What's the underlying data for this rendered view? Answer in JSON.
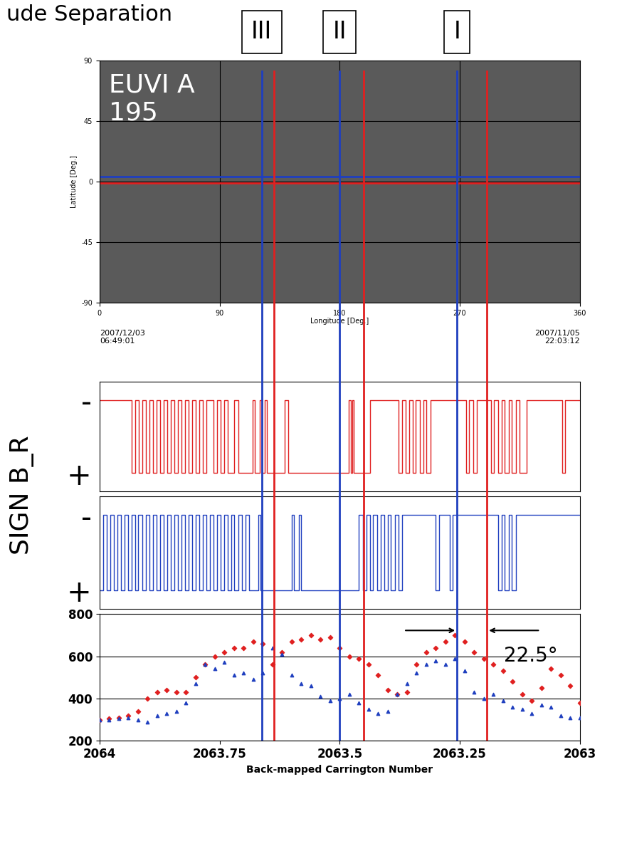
{
  "header": "ude Separation",
  "chart_data": [
    {
      "type": "image",
      "title": "EUVI A\n195",
      "xlabel": "Longitude [Deg.]",
      "ylabel": "Latitude [Deg.]",
      "xlim": [
        0,
        360
      ],
      "ylim": [
        -90,
        90
      ],
      "xticks": [
        0,
        90,
        180,
        270,
        360
      ],
      "yticks": [
        -90,
        -45,
        0,
        45,
        90
      ],
      "grid": true,
      "annotations": [
        "2007/12/03\n06:49:01",
        "2007/11/05\n22:03:12"
      ],
      "reference_lines": [
        {
          "color": "#1f3fbf",
          "y": 4
        },
        {
          "color": "#e02020",
          "y": -1
        }
      ],
      "markers": [
        {
          "label": "III",
          "lines": [
            {
              "color": "#1f3fbf",
              "x": 121.6
            },
            {
              "color": "#e02020",
              "x": 131.0
            }
          ]
        },
        {
          "label": "II",
          "lines": [
            {
              "color": "#1f3fbf",
              "x": 180.0
            },
            {
              "color": "#e02020",
              "x": 198.0
            }
          ]
        },
        {
          "label": "I",
          "lines": [
            {
              "color": "#1f3fbf",
              "x": 268.0
            },
            {
              "color": "#e02020",
              "x": 290.5
            }
          ]
        }
      ]
    },
    {
      "type": "step",
      "ylabel": "SIGN B_R",
      "color": "#e02020",
      "xlim": [
        2064,
        2063
      ],
      "ylim": [
        1.5,
        -1.5
      ],
      "yticks": [
        {
          "value": -1,
          "label": "-"
        },
        {
          "value": 1,
          "label": "+"
        }
      ],
      "tick_labels": "y",
      "x": [
        2064.0,
        2063.933,
        2063.926,
        2063.918,
        2063.911,
        2063.904,
        2063.896,
        2063.889,
        2063.881,
        2063.874,
        2063.867,
        2063.859,
        2063.852,
        2063.844,
        2063.837,
        2063.83,
        2063.822,
        2063.815,
        2063.807,
        2063.8,
        2063.793,
        2063.785,
        2063.778,
        2063.763,
        2063.755,
        2063.748,
        2063.74,
        2063.733,
        2063.719,
        2063.711,
        2063.681,
        2063.676,
        2063.667,
        2063.662,
        2063.656,
        2063.651,
        2063.615,
        2063.607,
        2063.481,
        2063.477,
        2063.474,
        2063.47,
        2063.437,
        2063.378,
        2063.37,
        2063.363,
        2063.355,
        2063.348,
        2063.341,
        2063.333,
        2063.326,
        2063.319,
        2063.311,
        2063.237,
        2063.23,
        2063.222,
        2063.215,
        2063.185,
        2063.178,
        2063.17,
        2063.163,
        2063.156,
        2063.148,
        2063.141,
        2063.133,
        2063.126,
        2063.111,
        2063.037,
        2063.03,
        2063.0
      ],
      "values": [
        -1,
        1,
        -1,
        1,
        -1,
        1,
        -1,
        1,
        -1,
        1,
        -1,
        1,
        -1,
        1,
        -1,
        1,
        -1,
        1,
        -1,
        1,
        -1,
        1,
        -1,
        1,
        -1,
        1,
        -1,
        1,
        -1,
        1,
        -1,
        1,
        -1,
        1,
        -1,
        1,
        -1,
        1,
        -1,
        1,
        -1,
        1,
        -1,
        1,
        -1,
        1,
        -1,
        1,
        -1,
        1,
        -1,
        1,
        -1,
        1,
        -1,
        1,
        -1,
        1,
        -1,
        1,
        -1,
        1,
        -1,
        1,
        -1,
        1,
        -1,
        1,
        -1,
        -1
      ]
    },
    {
      "type": "step",
      "color": "#1f3fbf",
      "xlim": [
        2064,
        2063
      ],
      "ylim": [
        1.5,
        -1.5
      ],
      "yticks": [
        {
          "value": -1,
          "label": "-"
        },
        {
          "value": 1,
          "label": "+"
        }
      ],
      "tick_labels": "y",
      "x": [
        2064.0,
        2063.993,
        2063.985,
        2063.978,
        2063.97,
        2063.963,
        2063.955,
        2063.948,
        2063.941,
        2063.933,
        2063.926,
        2063.919,
        2063.911,
        2063.904,
        2063.896,
        2063.889,
        2063.881,
        2063.874,
        2063.867,
        2063.859,
        2063.852,
        2063.844,
        2063.837,
        2063.83,
        2063.822,
        2063.815,
        2063.807,
        2063.8,
        2063.793,
        2063.785,
        2063.778,
        2063.77,
        2063.763,
        2063.755,
        2063.748,
        2063.74,
        2063.733,
        2063.726,
        2063.719,
        2063.711,
        2063.704,
        2063.696,
        2063.689,
        2063.67,
        2063.665,
        2063.6,
        2063.595,
        2063.585,
        2063.58,
        2063.46,
        2063.452,
        2063.444,
        2063.437,
        2063.43,
        2063.422,
        2063.415,
        2063.407,
        2063.4,
        2063.393,
        2063.385,
        2063.378,
        2063.37,
        2063.3,
        2063.293,
        2063.27,
        2063.265,
        2063.17,
        2063.163,
        2063.156,
        2063.148,
        2063.141,
        2063.133,
        2063.0
      ],
      "values": [
        1,
        -1,
        1,
        -1,
        1,
        -1,
        1,
        -1,
        1,
        -1,
        1,
        -1,
        1,
        -1,
        1,
        -1,
        1,
        -1,
        1,
        -1,
        1,
        -1,
        1,
        -1,
        1,
        -1,
        1,
        -1,
        1,
        -1,
        1,
        -1,
        1,
        -1,
        1,
        -1,
        1,
        -1,
        1,
        -1,
        1,
        -1,
        1,
        -1,
        1,
        -1,
        1,
        -1,
        1,
        -1,
        1,
        -1,
        1,
        -1,
        1,
        -1,
        1,
        -1,
        1,
        -1,
        1,
        -1,
        1,
        -1,
        1,
        -1,
        1,
        -1,
        1,
        -1,
        1,
        -1,
        -1
      ]
    },
    {
      "type": "scatter",
      "xlabel": "Back-mapped Carrington Number",
      "xlim": [
        2064,
        2063
      ],
      "ylim": [
        200,
        800
      ],
      "xticks": [
        2064,
        2063.75,
        2063.5,
        2063.25,
        2063
      ],
      "yticks": [
        200,
        400,
        600,
        800
      ],
      "grid": "y",
      "annotations": [
        "22.5°"
      ],
      "x": [
        2064.0,
        2063.98,
        2063.96,
        2063.94,
        2063.92,
        2063.9,
        2063.88,
        2063.86,
        2063.84,
        2063.82,
        2063.8,
        2063.78,
        2063.76,
        2063.74,
        2063.72,
        2063.7,
        2063.68,
        2063.66,
        2063.64,
        2063.62,
        2063.6,
        2063.58,
        2063.56,
        2063.54,
        2063.52,
        2063.5,
        2063.48,
        2063.46,
        2063.44,
        2063.42,
        2063.4,
        2063.38,
        2063.36,
        2063.34,
        2063.32,
        2063.3,
        2063.28,
        2063.26,
        2063.24,
        2063.22,
        2063.2,
        2063.18,
        2063.16,
        2063.14,
        2063.12,
        2063.1,
        2063.08,
        2063.06,
        2063.04,
        2063.02,
        2063.0
      ],
      "series": [
        {
          "color": "#e02020",
          "marker": "diamond",
          "values": [
            300,
            305,
            310,
            320,
            340,
            400,
            430,
            440,
            430,
            430,
            500,
            560,
            600,
            620,
            640,
            640,
            670,
            660,
            560,
            620,
            670,
            680,
            700,
            680,
            690,
            640,
            600,
            590,
            560,
            510,
            440,
            420,
            430,
            560,
            620,
            640,
            670,
            700,
            670,
            620,
            590,
            560,
            530,
            480,
            420,
            390,
            450,
            540,
            510,
            460,
            380
          ]
        },
        {
          "color": "#1f3fbf",
          "marker": "triangle",
          "values": [
            300,
            300,
            305,
            310,
            300,
            290,
            320,
            330,
            340,
            380,
            470,
            560,
            540,
            570,
            510,
            520,
            490,
            520,
            640,
            610,
            510,
            470,
            460,
            410,
            390,
            400,
            420,
            380,
            350,
            330,
            340,
            420,
            470,
            520,
            560,
            580,
            560,
            590,
            530,
            430,
            400,
            420,
            390,
            360,
            350,
            330,
            370,
            360,
            320,
            310,
            310
          ]
        }
      ]
    }
  ]
}
